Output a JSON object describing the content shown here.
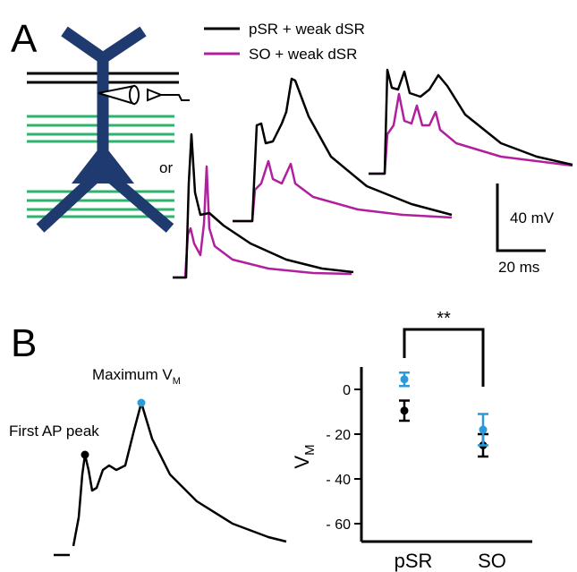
{
  "panel_a": {
    "label": "A",
    "legend": [
      {
        "name": "pSR + weak dSR",
        "color": "#000000"
      },
      {
        "name": "SO + weak dSR",
        "color": "#b0209e"
      }
    ],
    "or_text": "or",
    "scale_v": "40 mV",
    "scale_t": "20 ms"
  },
  "panel_b": {
    "label": "B",
    "first_peak": "First AP peak",
    "max_vm": {
      "text": "Maximum  V",
      "subscript": "M"
    }
  },
  "chart_data": {
    "type": "errorbar",
    "categories": [
      "pSR",
      "SO"
    ],
    "y_label": {
      "text": "V",
      "subscript": "M"
    },
    "series": [
      {
        "color": "#000000",
        "values": [
          -9.5,
          -25
        ],
        "errors": [
          4.5,
          5
        ]
      },
      {
        "color": "#2a9ad8",
        "values": [
          4.5,
          -18
        ],
        "errors": [
          3,
          7
        ]
      }
    ],
    "ylim": [
      -68,
      10
    ],
    "yticks": [
      0,
      {
        "value": -20,
        "label": "- 20"
      },
      {
        "value": -40,
        "label": "- 40"
      },
      {
        "value": -60,
        "label": "- 60"
      }
    ],
    "significance": "**"
  }
}
